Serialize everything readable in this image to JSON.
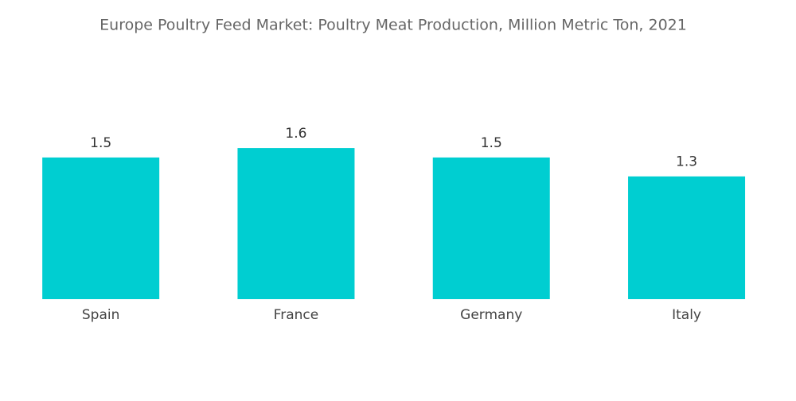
{
  "chart_data": {
    "type": "bar",
    "title": "Europe Poultry Feed Market: Poultry Meat Production, Million Metric Ton, 2021",
    "categories": [
      "Spain",
      "France",
      "Germany",
      "Italy"
    ],
    "values": [
      1.5,
      1.6,
      1.5,
      1.3
    ],
    "color": "#00ced1"
  }
}
